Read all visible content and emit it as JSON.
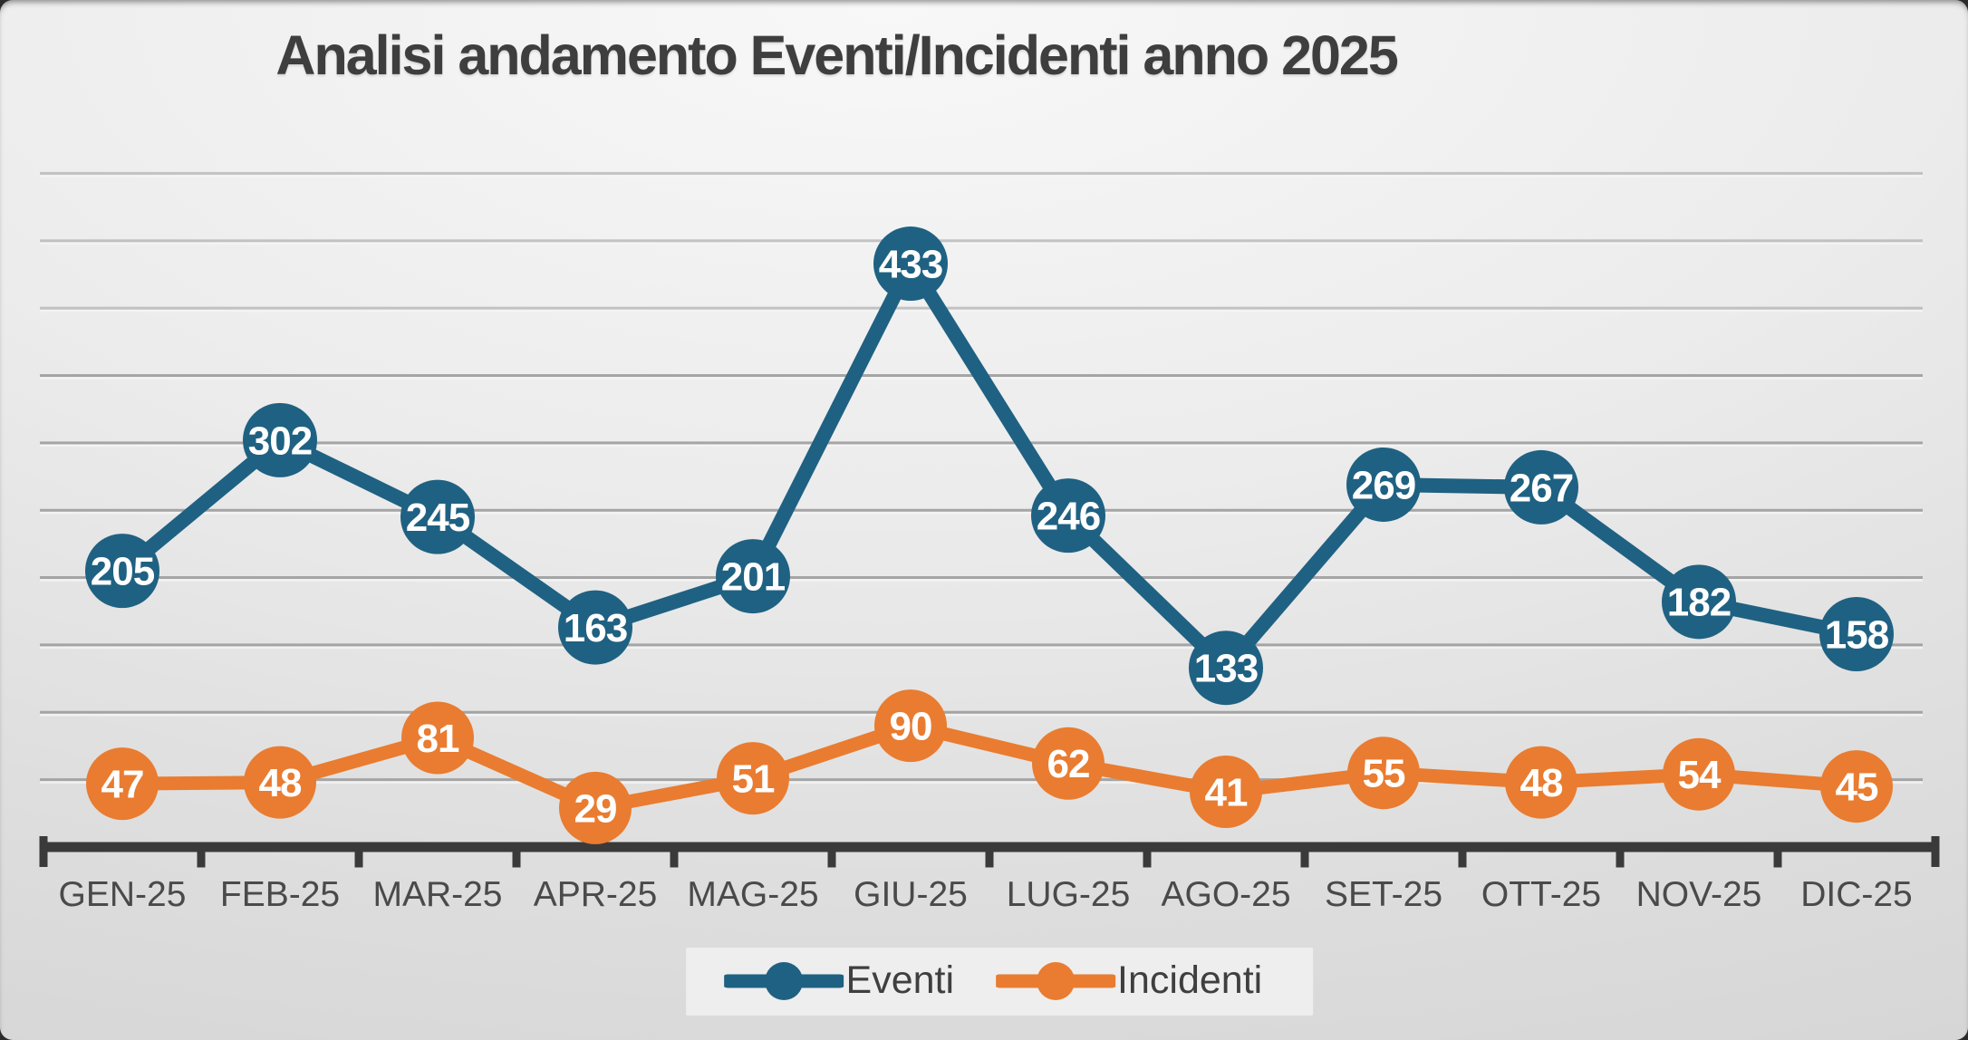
{
  "title": "Analisi andamento Eventi/Incidenti anno 2025",
  "colors": {
    "eventi": "#1f6182",
    "incidenti": "#e97c30",
    "grid": "#9e9e9e",
    "grid_highlight": "#f5f5f5",
    "axis": "#3a3a3a",
    "title_text": "#3e3e3e",
    "tick_label": "#4a4a4a",
    "data_label": "#ffffff",
    "legend_text": "#3f3f3f"
  },
  "chart_data": {
    "type": "line",
    "title": "Analisi andamento Eventi/Incidenti anno 2025",
    "categories": [
      "GEN-25",
      "FEB-25",
      "MAR-25",
      "APR-25",
      "MAG-25",
      "GIU-25",
      "LUG-25",
      "AGO-25",
      "SET-25",
      "OTT-25",
      "NOV-25",
      "DIC-25"
    ],
    "series": [
      {
        "name": "Eventi",
        "color": "#1f6182",
        "values": [
          205,
          302,
          245,
          163,
          201,
          433,
          246,
          133,
          269,
          267,
          182,
          158
        ]
      },
      {
        "name": "Incidenti",
        "color": "#e97c30",
        "values": [
          47,
          48,
          81,
          29,
          51,
          90,
          62,
          41,
          55,
          48,
          54,
          45
        ]
      }
    ],
    "xlabel": "",
    "ylabel": "",
    "ylim": [
      0,
      500
    ],
    "grid_step": 50,
    "grid": "horizontal",
    "y_axis_labels_visible": false,
    "data_labels": "inside markers",
    "legend_position": "bottom-center"
  },
  "legend": {
    "items": [
      {
        "label": "Eventi"
      },
      {
        "label": "Incidenti"
      }
    ]
  }
}
